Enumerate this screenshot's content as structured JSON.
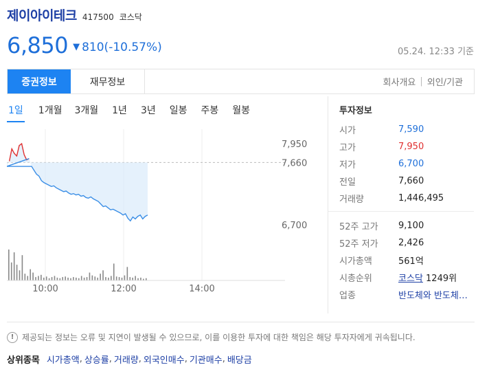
{
  "stock": {
    "name": "제이아이테크",
    "code": "417500",
    "market": "코스닥",
    "price": "6,850",
    "change_arrow": "▼",
    "change": "810(-10.57%)",
    "timestamp": "05.24. 12:33 기준"
  },
  "colors": {
    "accent": "#1d83f2",
    "down": "#1e6fd9",
    "up": "#e03030",
    "title": "#1d3fa5"
  },
  "tabs": {
    "active": "증권정보",
    "second": "재무정보",
    "link1": "회사개요",
    "link2": "외인/기관",
    "sep": "|"
  },
  "periods": [
    "1일",
    "1개월",
    "3개월",
    "1년",
    "3년",
    "일봉",
    "주봉",
    "월봉"
  ],
  "chart_data": {
    "type": "line",
    "x_tick_labels": [
      "10:00",
      "12:00",
      "14:00"
    ],
    "y_tick_labels": [
      "7,950",
      "7,660",
      "6,700"
    ],
    "ylim": [
      6700,
      7950
    ],
    "reference_value": 7660,
    "grid": true,
    "series": [
      {
        "values": [
          7600,
          7680,
          7870,
          7800,
          7760,
          7920,
          7950,
          7780,
          7700,
          7720,
          7600,
          7540,
          7480,
          7450,
          7380,
          7350,
          7330,
          7310,
          7290,
          7300,
          7270,
          7250,
          7230,
          7210,
          7220,
          7190,
          7170,
          7180,
          7160,
          7170,
          7140,
          7150,
          7120,
          7110,
          7130,
          7100,
          7080,
          7060,
          7020,
          6980,
          6990,
          6960,
          6930,
          6940,
          6920,
          6900,
          6880,
          6850,
          6870,
          6800,
          6760,
          6820,
          6790,
          6830,
          6850,
          6790,
          6830,
          6850
        ]
      }
    ],
    "volume": [
      55,
      32,
      50,
      28,
      18,
      45,
      12,
      8,
      20,
      14,
      6,
      8,
      10,
      5,
      7,
      4,
      6,
      8,
      5,
      4,
      6,
      7,
      5,
      4,
      6,
      5,
      4,
      8,
      5,
      6,
      14,
      9,
      7,
      5,
      12,
      18,
      6,
      5,
      8,
      30,
      7,
      6,
      5,
      9,
      24,
      6,
      5,
      8,
      4,
      5,
      3,
      4
    ]
  },
  "info": {
    "title": "투자정보",
    "rows": [
      {
        "label": "시가",
        "value": "7,590",
        "color": "#1e6fd9"
      },
      {
        "label": "고가",
        "value": "7,950",
        "color": "#e03030"
      },
      {
        "label": "저가",
        "value": "6,700",
        "color": "#1e6fd9"
      },
      {
        "label": "전일",
        "value": "7,660",
        "color": "#222222"
      },
      {
        "label": "거래량",
        "value": "1,446,495",
        "color": "#222222"
      }
    ],
    "rows2": {
      "high52_label": "52주 고가",
      "high52_value": "9,100",
      "low52_label": "52주 저가",
      "low52_value": "2,426",
      "cap_label": "시가총액",
      "cap_value": "561억",
      "rank_label": "시총순위",
      "rank_market": "코스닥",
      "rank_value": "1249위",
      "sector_label": "업종",
      "sector_value": "반도체와 반도체장비"
    }
  },
  "notice": {
    "icon": "!",
    "text": "제공되는 정보는 오류 및 지연이 발생될 수 있으므로, 이를 이용한 투자에 대한 책임은 해당 투자자에게 귀속됩니다."
  },
  "top_stocks": {
    "title": "상위종목",
    "links": [
      "시가총액",
      "상승률",
      "거래량",
      "외국인매수",
      "기관매수",
      "배당금"
    ]
  }
}
